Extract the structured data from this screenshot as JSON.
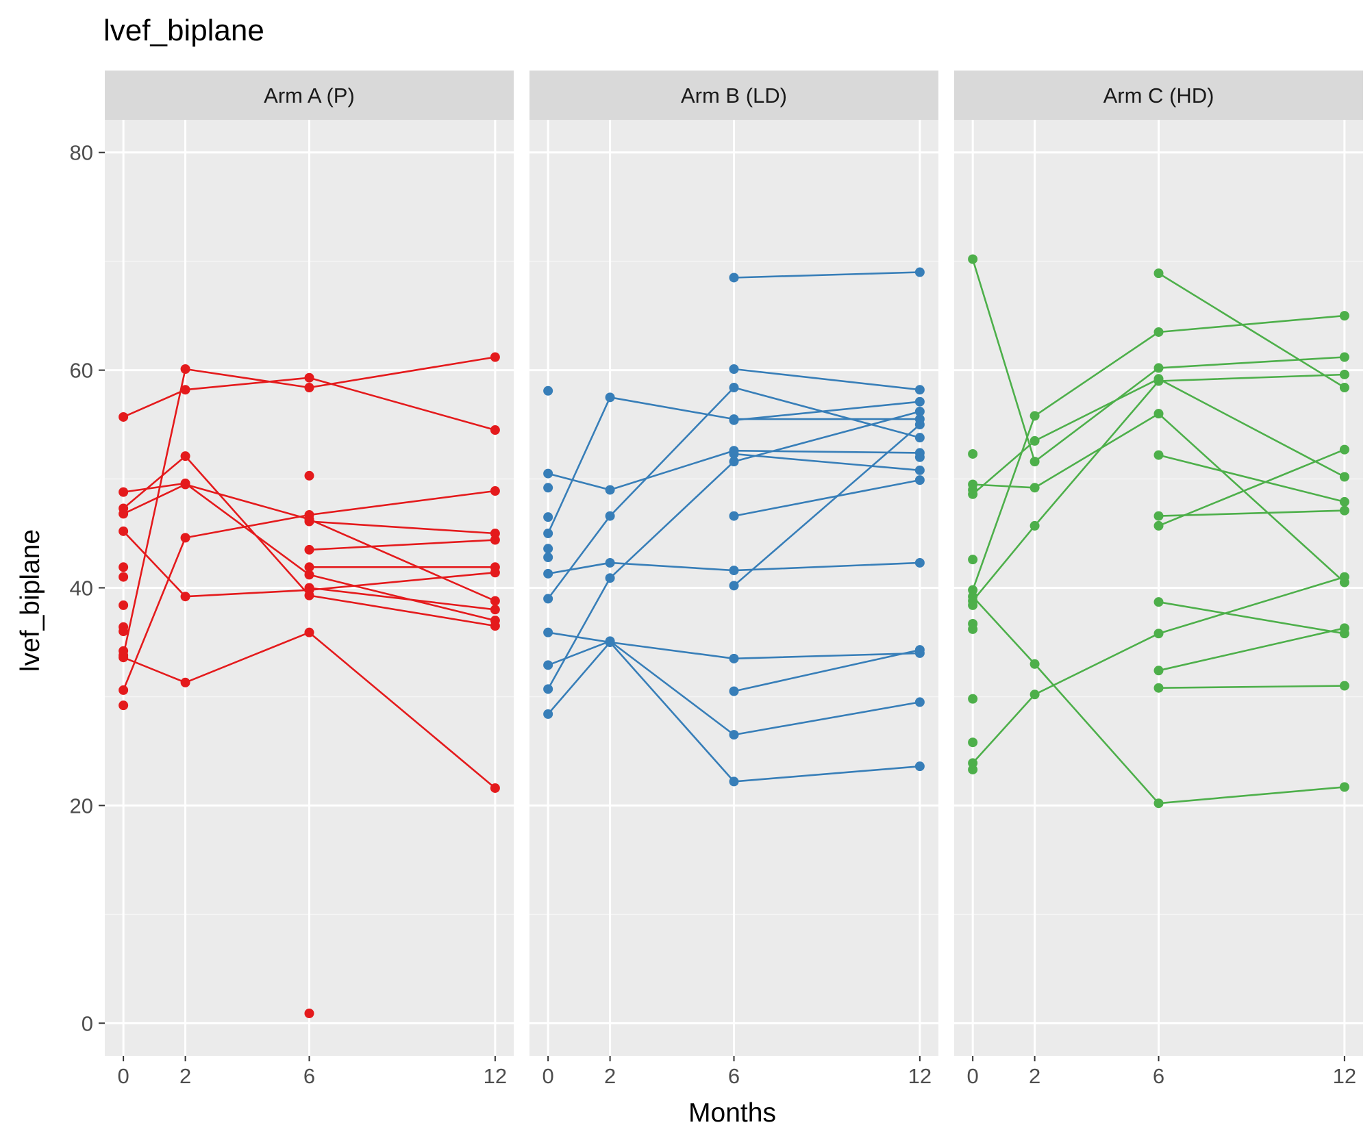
{
  "chart_data": {
    "type": "line",
    "title": "lvef_biplane",
    "xlabel": "Months",
    "ylabel": "lvef_biplane",
    "x_ticks": [
      0,
      2,
      6,
      12
    ],
    "y_ticks": [
      0,
      20,
      40,
      60,
      80
    ],
    "xlim": [
      -0.6,
      12.6
    ],
    "ylim": [
      -3,
      83
    ],
    "grid": true,
    "legend": "none",
    "panels": [
      {
        "label": "Arm A (P)",
        "color": "#E41A1C",
        "lines": [
          [
            [
              0,
              55.7
            ],
            [
              2,
              58.2
            ],
            [
              6,
              59.3
            ],
            [
              12,
              54.5
            ]
          ],
          [
            [
              0,
              33.8
            ],
            [
              2,
              60.1
            ],
            [
              6,
              58.4
            ],
            [
              12,
              61.2
            ]
          ],
          [
            [
              0,
              48.8
            ],
            [
              2,
              49.6
            ],
            [
              6,
              41.2
            ],
            [
              12,
              37.0
            ]
          ],
          [
            [
              0,
              47.3
            ],
            [
              2,
              52.1
            ],
            [
              6,
              39.3
            ],
            [
              12,
              36.5
            ]
          ],
          [
            [
              0,
              46.8
            ],
            [
              2,
              49.5
            ],
            [
              6,
              46.3
            ],
            [
              12,
              38.8
            ]
          ],
          [
            [
              0,
              30.6
            ],
            [
              2,
              44.6
            ],
            [
              6,
              46.7
            ],
            [
              12,
              48.9
            ]
          ],
          [
            [
              0,
              45.2
            ],
            [
              2,
              39.2
            ],
            [
              6,
              39.8
            ],
            [
              12,
              41.4
            ]
          ],
          [
            [
              0,
              33.6
            ],
            [
              2,
              31.3
            ],
            [
              6,
              35.9
            ],
            [
              12,
              21.6
            ]
          ],
          [
            [
              6,
              43.5
            ],
            [
              12,
              44.4
            ]
          ],
          [
            [
              6,
              46.1
            ],
            [
              12,
              45.0
            ]
          ],
          [
            [
              6,
              41.9
            ],
            [
              12,
              41.9
            ]
          ],
          [
            [
              6,
              40.0
            ],
            [
              12,
              38.0
            ]
          ]
        ],
        "points": [
          [
            0,
            41.9
          ],
          [
            0,
            41.0
          ],
          [
            0,
            38.4
          ],
          [
            0,
            36.4
          ],
          [
            0,
            36.0
          ],
          [
            0,
            34.2
          ],
          [
            0,
            29.2
          ],
          [
            6,
            50.3
          ],
          [
            6,
            0.9
          ]
        ]
      },
      {
        "label": "Arm B (LD)",
        "color": "#377EB8",
        "lines": [
          [
            [
              6,
              68.5
            ],
            [
              12,
              69.0
            ]
          ],
          [
            [
              0,
              41.3
            ],
            [
              2,
              42.3
            ],
            [
              6,
              41.6
            ],
            [
              12,
              42.3
            ]
          ],
          [
            [
              0,
              45.0
            ],
            [
              2,
              57.5
            ],
            [
              6,
              55.5
            ],
            [
              12,
              55.5
            ]
          ],
          [
            [
              0,
              50.5
            ],
            [
              2,
              49.0
            ],
            [
              6,
              52.6
            ],
            [
              12,
              52.4
            ]
          ],
          [
            [
              0,
              39.0
            ],
            [
              2,
              46.6
            ],
            [
              6,
              58.4
            ],
            [
              12,
              53.8
            ]
          ],
          [
            [
              0,
              35.9
            ],
            [
              2,
              35.0
            ],
            [
              6,
              33.5
            ],
            [
              12,
              34.0
            ]
          ],
          [
            [
              0,
              32.9
            ],
            [
              2,
              35.1
            ],
            [
              6,
              26.5
            ],
            [
              12,
              29.5
            ]
          ],
          [
            [
              0,
              30.7
            ],
            [
              2,
              40.9
            ],
            [
              6,
              51.6
            ],
            [
              12,
              56.2
            ]
          ],
          [
            [
              0,
              28.4
            ],
            [
              2,
              35.0
            ],
            [
              6,
              22.2
            ],
            [
              12,
              23.6
            ]
          ],
          [
            [
              6,
              60.1
            ],
            [
              12,
              58.2
            ]
          ],
          [
            [
              6,
              55.4
            ],
            [
              12,
              57.1
            ]
          ],
          [
            [
              6,
              52.3
            ],
            [
              12,
              50.8
            ]
          ],
          [
            [
              6,
              46.6
            ],
            [
              12,
              49.9
            ]
          ],
          [
            [
              6,
              40.2
            ],
            [
              12,
              55.0
            ]
          ],
          [
            [
              6,
              30.5
            ],
            [
              12,
              34.3
            ]
          ]
        ],
        "points": [
          [
            0,
            58.1
          ],
          [
            0,
            49.2
          ],
          [
            0,
            46.5
          ],
          [
            0,
            43.6
          ],
          [
            0,
            42.8
          ],
          [
            12,
            52.0
          ]
        ]
      },
      {
        "label": "Arm C (HD)",
        "color": "#4DAF4A",
        "lines": [
          [
            [
              0,
              70.2
            ],
            [
              2,
              51.6
            ],
            [
              6,
              60.2
            ],
            [
              12,
              61.2
            ]
          ],
          [
            [
              0,
              49.5
            ],
            [
              2,
              49.2
            ],
            [
              6,
              56.0
            ],
            [
              12,
              40.5
            ]
          ],
          [
            [
              0,
              48.6
            ],
            [
              2,
              53.5
            ],
            [
              6,
              59.2
            ],
            [
              12,
              50.2
            ]
          ],
          [
            [
              0,
              39.8
            ],
            [
              2,
              55.8
            ],
            [
              6,
              63.5
            ],
            [
              12,
              65.0
            ]
          ],
          [
            [
              0,
              38.8
            ],
            [
              2,
              45.7
            ],
            [
              6,
              59.0
            ],
            [
              12,
              59.6
            ]
          ],
          [
            [
              0,
              39.2
            ],
            [
              2,
              33.0
            ],
            [
              6,
              20.2
            ],
            [
              12,
              21.7
            ]
          ],
          [
            [
              0,
              23.9
            ],
            [
              2,
              30.2
            ],
            [
              6,
              35.8
            ],
            [
              12,
              41.0
            ]
          ],
          [
            [
              6,
              68.9
            ],
            [
              12,
              58.4
            ]
          ],
          [
            [
              6,
              52.2
            ],
            [
              12,
              47.9
            ]
          ],
          [
            [
              6,
              45.7
            ],
            [
              12,
              52.7
            ]
          ],
          [
            [
              6,
              46.6
            ],
            [
              12,
              47.1
            ]
          ],
          [
            [
              6,
              38.7
            ],
            [
              12,
              35.8
            ]
          ],
          [
            [
              6,
              32.4
            ],
            [
              12,
              36.3
            ]
          ],
          [
            [
              6,
              30.8
            ],
            [
              12,
              31.0
            ]
          ]
        ],
        "points": [
          [
            0,
            52.3
          ],
          [
            0,
            49.0
          ],
          [
            0,
            42.6
          ],
          [
            0,
            38.4
          ],
          [
            0,
            36.7
          ],
          [
            0,
            36.2
          ],
          [
            0,
            29.8
          ],
          [
            0,
            25.8
          ],
          [
            0,
            23.3
          ]
        ]
      }
    ]
  }
}
